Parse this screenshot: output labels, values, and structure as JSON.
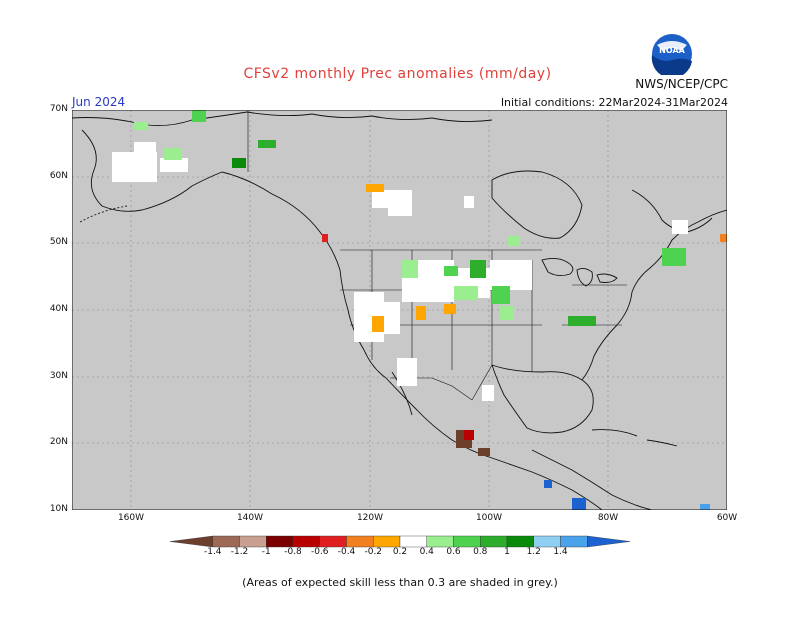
{
  "title": "CFSv2 monthly Prec anomalies (mm/day)",
  "agency": "NWS/NCEP/CPC",
  "logo_text": "NOAA",
  "month": "Jun 2024",
  "initial_conditions": "Initial conditions: 22Mar2024-31Mar2024",
  "latitude_labels": [
    "70N",
    "60N",
    "50N",
    "40N",
    "30N",
    "20N",
    "10N"
  ],
  "longitude_labels": [
    "160W",
    "140W",
    "120W",
    "100W",
    "80W",
    "60W"
  ],
  "colorbar": {
    "labels": [
      "-1.4",
      "-1.2",
      "-1",
      "-0.8",
      "-0.6",
      "-0.4",
      "-0.2",
      "0.2",
      "0.4",
      "0.6",
      "0.8",
      "1",
      "1.2",
      "1.4"
    ],
    "colors": [
      "#6b3f2c",
      "#9c6a57",
      "#c89f90",
      "#7a0000",
      "#b80000",
      "#e02020",
      "#f08020",
      "#ffa700",
      "#ffffff",
      "#9bee90",
      "#4fd24f",
      "#2cad2c",
      "#0a8a0a",
      "#8ecff2",
      "#4aa3ea",
      "#1b62d0"
    ]
  },
  "footer": "(Areas of expected skill less than 0.3 are shaded in grey.)",
  "colors": {
    "map_background": "#c8c8c8",
    "unshaded": "#ffffff",
    "title": "#e0403a",
    "month": "#2a39c7"
  }
}
